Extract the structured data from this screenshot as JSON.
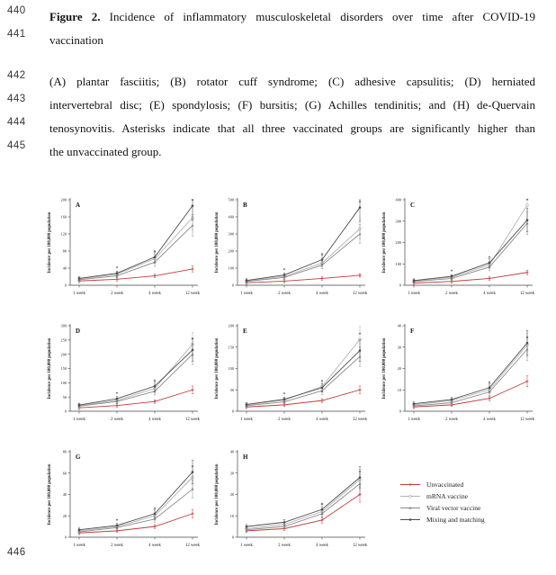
{
  "page": {
    "line_numbers": [
      "440",
      "441",
      "442",
      "443",
      "444",
      "445",
      "446"
    ]
  },
  "caption": {
    "figure_label": "Figure 2.",
    "title_line1": " Incidence of inflammatory musculoskeletal disorders over time after COVID-19",
    "title_line2": "vaccination",
    "desc_lines": [
      "(A) plantar fasciitis; (B) rotator cuff syndrome; (C) adhesive capsulitis; (D) herniated",
      "intervertebral disc; (E) spondylosis; (F) bursitis; (G) Achilles tendinitis; and (H) de-Quervain",
      "tenosynovitis. Asterisks indicate that all three vaccinated groups are significantly higher than",
      "the unvaccinated group."
    ]
  },
  "legend": {
    "entries": [
      {
        "label": "Unvaccinated",
        "color": "#c23b3b"
      },
      {
        "label": "mRNA vaccine",
        "color": "#b3b3b3"
      },
      {
        "label": "Viral vector vaccine",
        "color": "#8a8a8a"
      },
      {
        "label": "Mixing and matching",
        "color": "#4d4d4d"
      }
    ]
  },
  "chart_data": [
    {
      "type": "line",
      "panel": "A",
      "condition": "plantar fasciitis",
      "categories": [
        "1 week",
        "2 week",
        "4 week",
        "12 week"
      ],
      "ylabel": "Incidence per 100,000 population",
      "ylim": [
        0,
        200
      ],
      "ystep": 40,
      "asterisks": [
        1,
        2,
        3
      ],
      "series": [
        {
          "name": "Unvaccinated",
          "values": [
            10,
            14,
            22,
            38
          ]
        },
        {
          "name": "mRNA vaccine",
          "values": [
            15,
            26,
            62,
            158
          ]
        },
        {
          "name": "Viral vector vaccine",
          "values": [
            13,
            22,
            54,
            140
          ]
        },
        {
          "name": "Mixing and matching",
          "values": [
            16,
            28,
            66,
            186
          ]
        }
      ]
    },
    {
      "type": "line",
      "panel": "B",
      "condition": "rotator cuff syndrome",
      "categories": [
        "1 week",
        "2 week",
        "4 week",
        "12 week"
      ],
      "ylabel": "Incidence per 100,000 population",
      "ylim": [
        0,
        500
      ],
      "ystep": 100,
      "asterisks": [
        1,
        2,
        3
      ],
      "series": [
        {
          "name": "Unvaccinated",
          "values": [
            15,
            24,
            40,
            58
          ]
        },
        {
          "name": "mRNA vaccine",
          "values": [
            25,
            52,
            130,
            330
          ]
        },
        {
          "name": "Viral vector vaccine",
          "values": [
            22,
            46,
            118,
            300
          ]
        },
        {
          "name": "Mixing and matching",
          "values": [
            28,
            60,
            150,
            455
          ]
        }
      ]
    },
    {
      "type": "line",
      "panel": "C",
      "condition": "adhesive capsulitis",
      "categories": [
        "1 week",
        "2 week",
        "4 week",
        "12 week"
      ],
      "ylabel": "Incidence per 100,000 population",
      "ylim": [
        0,
        400
      ],
      "ystep": 100,
      "asterisks": [
        1,
        2,
        3
      ],
      "series": [
        {
          "name": "Unvaccinated",
          "values": [
            10,
            18,
            32,
            60
          ]
        },
        {
          "name": "mRNA vaccine",
          "values": [
            20,
            38,
            95,
            375
          ]
        },
        {
          "name": "Viral vector vaccine",
          "values": [
            17,
            32,
            85,
            290
          ]
        },
        {
          "name": "Mixing and matching",
          "values": [
            22,
            42,
            105,
            305
          ]
        }
      ]
    },
    {
      "type": "line",
      "panel": "D",
      "condition": "herniated intervertebral disc",
      "categories": [
        "1 week",
        "2 week",
        "4 week",
        "12 week"
      ],
      "ylabel": "Incidence per 100,000 population",
      "ylim": [
        0,
        300
      ],
      "ystep": 50,
      "asterisks": [
        1,
        2,
        3
      ],
      "series": [
        {
          "name": "Unvaccinated",
          "values": [
            12,
            20,
            34,
            75
          ]
        },
        {
          "name": "mRNA vaccine",
          "values": [
            20,
            38,
            80,
            235
          ]
        },
        {
          "name": "Viral vector vaccine",
          "values": [
            18,
            34,
            70,
            200
          ]
        },
        {
          "name": "Mixing and matching",
          "values": [
            22,
            44,
            88,
            215
          ]
        }
      ]
    },
    {
      "type": "line",
      "panel": "E",
      "condition": "spondylosis",
      "categories": [
        "1 week",
        "2 week",
        "4 week",
        "12 week"
      ],
      "ylabel": "Incidence per 100,000 population",
      "ylim": [
        0,
        200
      ],
      "ystep": 50,
      "asterisks": [
        1,
        2,
        3
      ],
      "series": [
        {
          "name": "Unvaccinated",
          "values": [
            10,
            15,
            25,
            50
          ]
        },
        {
          "name": "mRNA vaccine",
          "values": [
            15,
            26,
            58,
            168
          ]
        },
        {
          "name": "Viral vector vaccine",
          "values": [
            13,
            22,
            48,
            128
          ]
        },
        {
          "name": "Mixing and matching",
          "values": [
            16,
            28,
            55,
            142
          ]
        }
      ]
    },
    {
      "type": "line",
      "panel": "F",
      "condition": "bursitis",
      "categories": [
        "1 week",
        "2 week",
        "4 week",
        "12 week"
      ],
      "ylabel": "Incidence per 100,000 population",
      "ylim": [
        0,
        40
      ],
      "ystep": 10,
      "asterisks": [
        2,
        3
      ],
      "series": [
        {
          "name": "Unvaccinated",
          "values": [
            2,
            3,
            6,
            14
          ]
        },
        {
          "name": "mRNA vaccine",
          "values": [
            3,
            5,
            10,
            31
          ]
        },
        {
          "name": "Viral vector vaccine",
          "values": [
            2.5,
            4,
            9,
            29
          ]
        },
        {
          "name": "Mixing and matching",
          "values": [
            3.5,
            5.5,
            11,
            32
          ]
        }
      ]
    },
    {
      "type": "line",
      "panel": "G",
      "condition": "Achilles tendinitis",
      "categories": [
        "1 week",
        "2 week",
        "4 week",
        "12 week"
      ],
      "ylabel": "Incidence per 100,000 population",
      "ylim": [
        0,
        80
      ],
      "ystep": 20,
      "asterisks": [
        1,
        2,
        3
      ],
      "series": [
        {
          "name": "Unvaccinated",
          "values": [
            4,
            6,
            10,
            22
          ]
        },
        {
          "name": "mRNA vaccine",
          "values": [
            6,
            10,
            20,
            56
          ]
        },
        {
          "name": "Viral vector vaccine",
          "values": [
            5,
            9,
            17,
            45
          ]
        },
        {
          "name": "Mixing and matching",
          "values": [
            7,
            11,
            22,
            61
          ]
        }
      ]
    },
    {
      "type": "line",
      "panel": "H",
      "condition": "de-Quervain tenosynovitis",
      "categories": [
        "1 week",
        "2 week",
        "4 week",
        "12 week"
      ],
      "ylabel": "Incidence per 100,000 population",
      "ylim": [
        0,
        40
      ],
      "ystep": 10,
      "asterisks": [
        2,
        3
      ],
      "series": [
        {
          "name": "Unvaccinated",
          "values": [
            3,
            4,
            8,
            20
          ]
        },
        {
          "name": "mRNA vaccine",
          "values": [
            4,
            6,
            12,
            27
          ]
        },
        {
          "name": "Viral vector vaccine",
          "values": [
            3.5,
            5,
            11,
            25
          ]
        },
        {
          "name": "Mixing and matching",
          "values": [
            5,
            7,
            13,
            28
          ]
        }
      ]
    }
  ]
}
